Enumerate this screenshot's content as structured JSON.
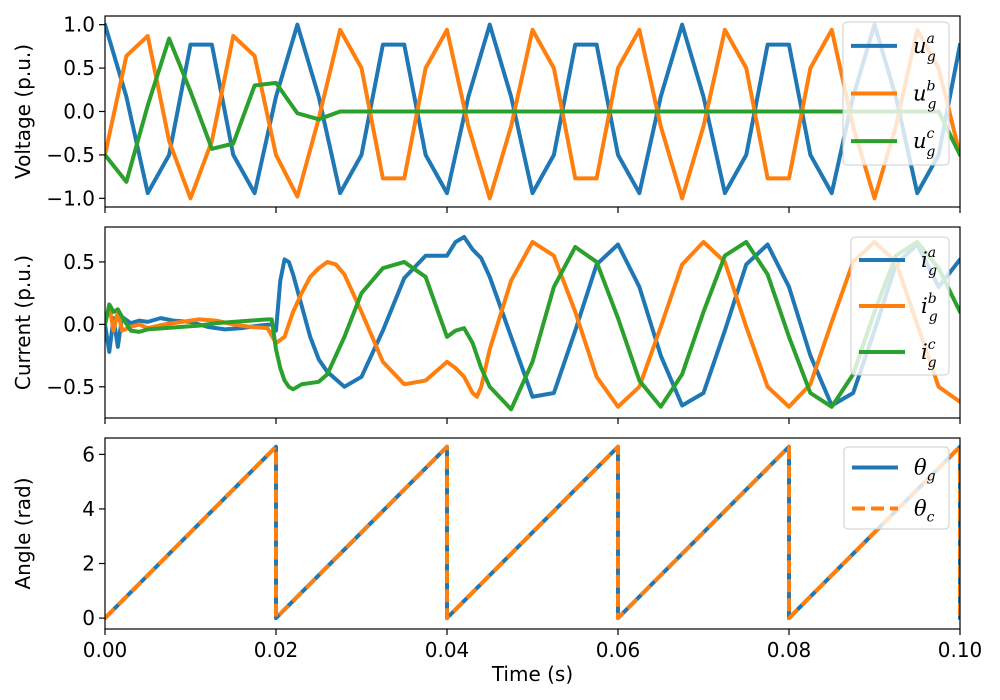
{
  "chart_data": [
    {
      "type": "line",
      "ylabel": "Voltage (p.u.)",
      "xlim": [
        0,
        0.1
      ],
      "ylim": [
        -1.1,
        1.1
      ],
      "yticks": [
        "−1.0",
        "−0.5",
        "0.0",
        "0.5",
        "1.0"
      ],
      "ytick_values": [
        -1.0,
        -0.5,
        0.0,
        0.5,
        1.0
      ],
      "legend_position": "top-right",
      "grid": false,
      "series": [
        {
          "name_base": "u",
          "name_sub": "g",
          "name_sup": "a",
          "color": "#1f77b4",
          "style": "solid",
          "x": [
            0,
            0.0025,
            0.005,
            0.0075,
            0.01,
            0.0125,
            0.015,
            0.0175,
            0.02,
            0.0225,
            0.025,
            0.0275,
            0.03,
            0.0325,
            0.035,
            0.0375,
            0.04,
            0.0425,
            0.045,
            0.0475,
            0.05,
            0.0525,
            0.055,
            0.0575,
            0.06,
            0.0625,
            0.065,
            0.0675,
            0.07,
            0.0725,
            0.075,
            0.0775,
            0.08,
            0.0825,
            0.085,
            0.0875,
            0.09,
            0.0925,
            0.095,
            0.0975,
            0.1
          ],
          "y": [
            1.0,
            0.17,
            -0.94,
            -0.5,
            0.77,
            0.77,
            -0.5,
            -0.94,
            0.17,
            1.0,
            0.17,
            -0.94,
            -0.5,
            0.77,
            0.77,
            -0.5,
            -0.94,
            0.17,
            1.0,
            0.17,
            -0.94,
            -0.5,
            0.77,
            0.77,
            -0.5,
            -0.94,
            0.17,
            1.0,
            0.17,
            -0.94,
            -0.5,
            0.77,
            0.77,
            -0.5,
            -0.94,
            0.17,
            1.0,
            0.17,
            -0.94,
            -0.5,
            0.77
          ]
        },
        {
          "name_base": "u",
          "name_sub": "g",
          "name_sup": "b",
          "color": "#ff7f0e",
          "style": "solid",
          "x": [
            0,
            0.0025,
            0.005,
            0.0075,
            0.01,
            0.0125,
            0.015,
            0.0175,
            0.02,
            0.0225,
            0.025,
            0.0275,
            0.03,
            0.0325,
            0.035,
            0.0375,
            0.04,
            0.0425,
            0.045,
            0.0475,
            0.05,
            0.0525,
            0.055,
            0.0575,
            0.06,
            0.0625,
            0.065,
            0.0675,
            0.07,
            0.0725,
            0.075,
            0.0775,
            0.08,
            0.0825,
            0.085,
            0.0875,
            0.09,
            0.0925,
            0.095,
            0.0975,
            0.1
          ],
          "y": [
            -0.5,
            0.64,
            0.87,
            -0.34,
            -1.0,
            -0.34,
            0.87,
            0.64,
            -0.5,
            -0.98,
            -0.08,
            0.94,
            0.5,
            -0.77,
            -0.77,
            0.5,
            0.94,
            -0.17,
            -1.0,
            -0.17,
            0.94,
            0.5,
            -0.77,
            -0.77,
            0.5,
            0.94,
            -0.17,
            -1.0,
            -0.17,
            0.94,
            0.5,
            -0.77,
            -0.77,
            0.5,
            0.94,
            -0.17,
            -1.0,
            -0.17,
            0.94,
            0.5,
            -0.5
          ]
        },
        {
          "name_base": "u",
          "name_sub": "g",
          "name_sup": "c",
          "color": "#2ca02c",
          "style": "solid",
          "x": [
            0,
            0.0025,
            0.005,
            0.0075,
            0.01,
            0.0125,
            0.015,
            0.0175,
            0.02,
            0.0225,
            0.025,
            0.0275,
            0.03,
            0.0325,
            0.035,
            0.0375,
            0.04,
            0.0425,
            0.045,
            0.0475,
            0.05,
            0.0525,
            0.055,
            0.0575,
            0.06,
            0.0625,
            0.065,
            0.0675,
            0.07,
            0.0725,
            0.075,
            0.0775,
            0.08,
            0.0825,
            0.085,
            0.0875,
            0.09,
            0.0925,
            0.095,
            0.0975,
            0.1
          ],
          "y": [
            -0.5,
            -0.81,
            0.07,
            0.84,
            0.23,
            -0.43,
            -0.37,
            0.3,
            0.33,
            -0.02,
            -0.09,
            0.0,
            0.0,
            0.0,
            0.0,
            0.0,
            0.0,
            0.0,
            0.0,
            0.0,
            0.0,
            0.0,
            0.0,
            0.0,
            0.0,
            0.0,
            0.0,
            0.0,
            0.0,
            0.0,
            0.0,
            0.0,
            0.0,
            0.0,
            0.0,
            0.0,
            0.0,
            0.0,
            0.0,
            0.0,
            -0.5
          ]
        }
      ]
    },
    {
      "type": "line",
      "ylabel": "Current (p.u.)",
      "xlim": [
        0,
        0.1
      ],
      "ylim": [
        -0.75,
        0.78
      ],
      "yticks": [
        "−0.5",
        "0.0",
        "0.5"
      ],
      "ytick_values": [
        -0.5,
        0.0,
        0.5
      ],
      "legend_position": "top-right",
      "grid": false,
      "series": [
        {
          "name_base": "i",
          "name_sub": "g",
          "name_sup": "a",
          "color": "#1f77b4",
          "style": "solid",
          "x": [
            0,
            0.0005,
            0.001,
            0.0015,
            0.002,
            0.003,
            0.004,
            0.005,
            0.0065,
            0.008,
            0.01,
            0.012,
            0.014,
            0.016,
            0.018,
            0.0195,
            0.02,
            0.0205,
            0.021,
            0.0215,
            0.022,
            0.023,
            0.024,
            0.025,
            0.026,
            0.028,
            0.03,
            0.0325,
            0.035,
            0.0375,
            0.04,
            0.041,
            0.042,
            0.043,
            0.044,
            0.045,
            0.0475,
            0.05,
            0.0525,
            0.055,
            0.0575,
            0.06,
            0.0625,
            0.065,
            0.0675,
            0.07,
            0.0725,
            0.075,
            0.0775,
            0.08,
            0.0825,
            0.085,
            0.0875,
            0.09,
            0.0925,
            0.095,
            0.0975,
            0.1
          ],
          "y": [
            0.0,
            -0.22,
            0.05,
            -0.18,
            0.06,
            0.01,
            0.03,
            0.02,
            0.05,
            0.03,
            0.02,
            -0.02,
            -0.04,
            -0.03,
            -0.01,
            0.0,
            -0.05,
            0.35,
            0.52,
            0.5,
            0.4,
            0.15,
            -0.1,
            -0.28,
            -0.38,
            -0.5,
            -0.42,
            -0.05,
            0.37,
            0.55,
            0.55,
            0.66,
            0.7,
            0.6,
            0.53,
            0.38,
            -0.1,
            -0.58,
            -0.55,
            -0.05,
            0.48,
            0.64,
            0.3,
            -0.25,
            -0.65,
            -0.55,
            -0.05,
            0.48,
            0.64,
            0.3,
            -0.25,
            -0.65,
            -0.55,
            -0.05,
            0.48,
            0.64,
            0.3,
            0.52
          ]
        },
        {
          "name_base": "i",
          "name_sub": "g",
          "name_sup": "b",
          "color": "#ff7f0e",
          "style": "solid",
          "x": [
            0,
            0.0005,
            0.001,
            0.0015,
            0.002,
            0.003,
            0.004,
            0.005,
            0.007,
            0.009,
            0.011,
            0.013,
            0.015,
            0.017,
            0.019,
            0.02,
            0.021,
            0.022,
            0.023,
            0.024,
            0.025,
            0.026,
            0.027,
            0.028,
            0.03,
            0.0325,
            0.035,
            0.0375,
            0.04,
            0.041,
            0.042,
            0.043,
            0.0435,
            0.044,
            0.045,
            0.0475,
            0.05,
            0.0525,
            0.055,
            0.0575,
            0.06,
            0.0625,
            0.065,
            0.0675,
            0.07,
            0.0725,
            0.075,
            0.0775,
            0.08,
            0.0825,
            0.085,
            0.0875,
            0.09,
            0.0925,
            0.095,
            0.0975,
            0.1
          ],
          "y": [
            0.0,
            0.15,
            -0.05,
            0.1,
            -0.05,
            -0.02,
            0.0,
            -0.03,
            0.0,
            0.02,
            0.04,
            0.03,
            0.0,
            -0.02,
            -0.03,
            -0.15,
            -0.1,
            0.1,
            0.25,
            0.38,
            0.45,
            0.5,
            0.48,
            0.4,
            0.1,
            -0.3,
            -0.48,
            -0.45,
            -0.3,
            -0.35,
            -0.42,
            -0.55,
            -0.58,
            -0.5,
            -0.2,
            0.35,
            0.66,
            0.55,
            0.1,
            -0.42,
            -0.66,
            -0.5,
            -0.02,
            0.48,
            0.66,
            0.5,
            -0.02,
            -0.5,
            -0.66,
            -0.48,
            0.02,
            0.5,
            0.66,
            0.5,
            0.0,
            -0.5,
            -0.62
          ]
        },
        {
          "name_base": "i",
          "name_sub": "g",
          "name_sup": "c",
          "color": "#2ca02c",
          "style": "solid",
          "x": [
            0,
            0.0005,
            0.001,
            0.0015,
            0.002,
            0.003,
            0.004,
            0.005,
            0.007,
            0.009,
            0.011,
            0.013,
            0.015,
            0.017,
            0.019,
            0.0195,
            0.02,
            0.0205,
            0.021,
            0.0215,
            0.022,
            0.023,
            0.024,
            0.025,
            0.026,
            0.028,
            0.03,
            0.0325,
            0.035,
            0.0375,
            0.04,
            0.041,
            0.042,
            0.043,
            0.044,
            0.045,
            0.0475,
            0.05,
            0.0525,
            0.055,
            0.0575,
            0.06,
            0.0625,
            0.065,
            0.0675,
            0.07,
            0.0725,
            0.075,
            0.0775,
            0.08,
            0.0825,
            0.085,
            0.0875,
            0.09,
            0.0925,
            0.095,
            0.0975,
            0.1
          ],
          "y": [
            0.0,
            0.16,
            0.1,
            0.12,
            0.06,
            -0.05,
            -0.06,
            -0.04,
            -0.03,
            -0.02,
            -0.01,
            0.01,
            0.02,
            0.03,
            0.04,
            0.04,
            -0.2,
            -0.35,
            -0.45,
            -0.5,
            -0.52,
            -0.48,
            -0.47,
            -0.46,
            -0.4,
            -0.1,
            0.25,
            0.45,
            0.5,
            0.38,
            -0.1,
            -0.05,
            -0.03,
            -0.15,
            -0.35,
            -0.5,
            -0.68,
            -0.3,
            0.3,
            0.62,
            0.5,
            0.05,
            -0.45,
            -0.66,
            -0.4,
            0.1,
            0.55,
            0.66,
            0.4,
            -0.1,
            -0.55,
            -0.66,
            -0.4,
            0.1,
            0.55,
            0.66,
            0.45,
            0.1
          ]
        }
      ]
    },
    {
      "type": "line",
      "ylabel": "Angle (rad)",
      "xlabel": "Time (s)",
      "xlim": [
        0,
        0.1
      ],
      "ylim": [
        -0.4,
        6.6
      ],
      "yticks": [
        "0",
        "2",
        "4",
        "6"
      ],
      "ytick_values": [
        0,
        2,
        4,
        6
      ],
      "xticks": [
        "0.00",
        "0.02",
        "0.04",
        "0.06",
        "0.08",
        "0.10"
      ],
      "xtick_values": [
        0.0,
        0.02,
        0.04,
        0.06,
        0.08,
        0.1
      ],
      "legend_position": "top-right",
      "grid": false,
      "series": [
        {
          "name_base": "θ",
          "name_sub": "g",
          "name_sup": "",
          "color": "#1f77b4",
          "style": "solid",
          "x": [
            0,
            0.02,
            0.02,
            0.04,
            0.04,
            0.06,
            0.06,
            0.08,
            0.08,
            0.1,
            0.1
          ],
          "y": [
            0,
            6.28,
            0,
            6.28,
            0,
            6.28,
            0,
            6.28,
            0,
            6.28,
            0
          ]
        },
        {
          "name_base": "θ",
          "name_sub": "c",
          "name_sup": "",
          "color": "#ff7f0e",
          "style": "dashed",
          "x": [
            0,
            0.02,
            0.02,
            0.04,
            0.04,
            0.06,
            0.06,
            0.08,
            0.08,
            0.1,
            0.1
          ],
          "y": [
            0,
            6.28,
            0,
            6.28,
            0,
            6.28,
            0,
            6.28,
            0,
            6.28,
            0
          ]
        }
      ]
    }
  ]
}
